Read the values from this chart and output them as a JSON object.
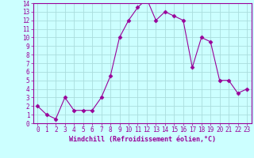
{
  "x": [
    0,
    1,
    2,
    3,
    4,
    5,
    6,
    7,
    8,
    9,
    10,
    11,
    12,
    13,
    14,
    15,
    16,
    17,
    18,
    19,
    20,
    21,
    22,
    23
  ],
  "y": [
    2.0,
    1.0,
    0.5,
    3.0,
    1.5,
    1.5,
    1.5,
    3.0,
    5.5,
    10.0,
    12.0,
    13.5,
    14.5,
    12.0,
    13.0,
    12.5,
    12.0,
    6.5,
    10.0,
    9.5,
    5.0,
    5.0,
    3.5,
    4.0
  ],
  "line_color": "#990099",
  "marker": "D",
  "marker_size": 2.5,
  "bg_color": "#ccffff",
  "grid_color": "#aadddd",
  "xlabel": "Windchill (Refroidissement éolien,°C)",
  "xlabel_color": "#990099",
  "tick_color": "#990099",
  "xlim": [
    -0.5,
    23.5
  ],
  "ylim": [
    0,
    14
  ],
  "yticks": [
    0,
    1,
    2,
    3,
    4,
    5,
    6,
    7,
    8,
    9,
    10,
    11,
    12,
    13,
    14
  ],
  "xticks": [
    0,
    1,
    2,
    3,
    4,
    5,
    6,
    7,
    8,
    9,
    10,
    11,
    12,
    13,
    14,
    15,
    16,
    17,
    18,
    19,
    20,
    21,
    22,
    23
  ],
  "xtick_labels": [
    "0",
    "1",
    "2",
    "3",
    "4",
    "5",
    "6",
    "7",
    "8",
    "9",
    "10",
    "11",
    "12",
    "13",
    "14",
    "15",
    "16",
    "17",
    "18",
    "19",
    "20",
    "21",
    "22",
    "23"
  ],
  "tick_fontsize": 5.5,
  "xlabel_fontsize": 6.0
}
